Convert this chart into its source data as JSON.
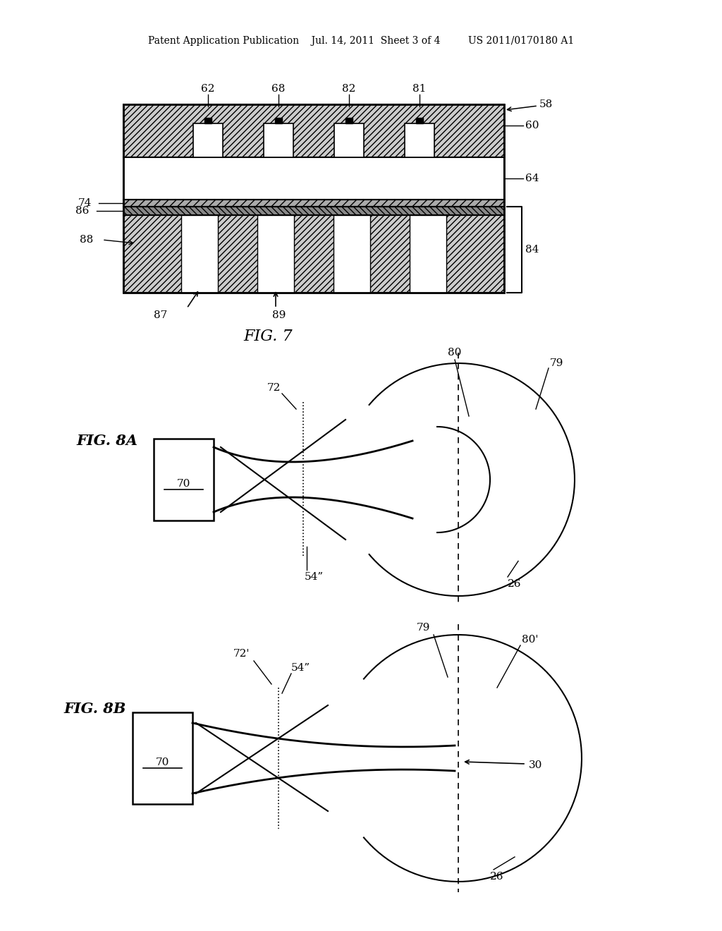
{
  "bg_color": "#ffffff",
  "line_color": "#000000",
  "header_text": "Patent Application Publication    Jul. 14, 2011  Sheet 3 of 4         US 2011/0170180 A1",
  "fig7_label": "FIG. 7",
  "fig8a_label": "FIG. 8A",
  "fig8b_label": "FIG. 8B"
}
